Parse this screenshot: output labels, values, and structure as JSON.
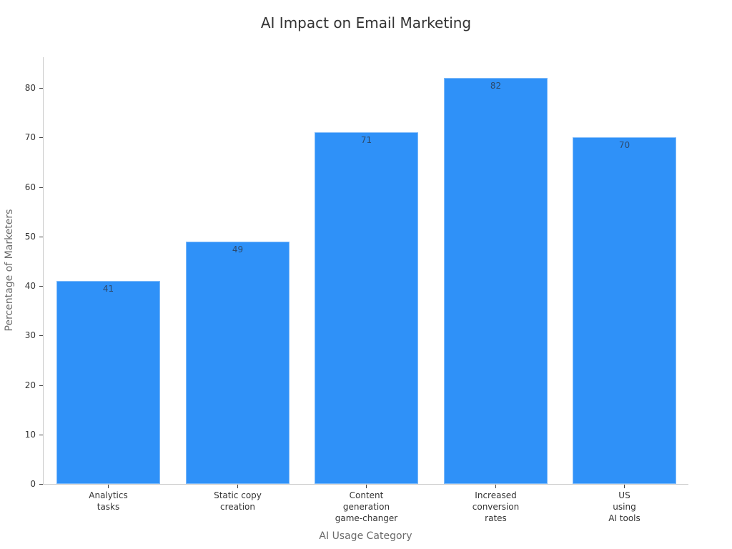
{
  "chart_data": {
    "type": "bar",
    "title": "AI Impact on Email Marketing",
    "xlabel": "AI Usage Category",
    "ylabel": "Percentage of Marketers",
    "categories": [
      "Analytics\ntasks",
      "Static copy\ncreation",
      "Content\ngeneration\ngame-changer",
      "Increased\nconversion\nrates",
      "US\nusing\nAI tools"
    ],
    "values": [
      41,
      49,
      71,
      82,
      70
    ],
    "value_labels": [
      "41",
      "49",
      "71",
      "82",
      "70"
    ],
    "ylim": [
      0,
      86
    ],
    "yticks": [
      "0",
      "10",
      "20",
      "30",
      "40",
      "50",
      "60",
      "70",
      "80"
    ],
    "grid": false,
    "legend": null,
    "bar_color": "#2f91f8"
  }
}
